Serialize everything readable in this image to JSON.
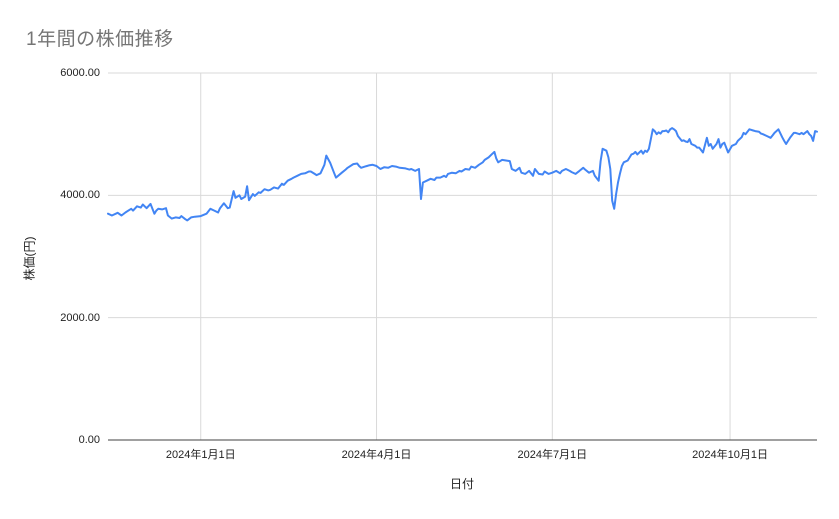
{
  "chart_data": {
    "type": "line",
    "title": "1年間の株価推移",
    "xlabel": "日付",
    "ylabel": "株価(円)",
    "ylim": [
      0,
      6000
    ],
    "grid": true,
    "legend_position": "none",
    "series_name": "株価",
    "series_color": "#4285f4",
    "grid_color": "#d9d9d9",
    "baseline_color": "#424242",
    "title_color": "#757575",
    "tick_color": "#222222",
    "y_ticks": [
      {
        "value": 6000,
        "label": "6000.00"
      },
      {
        "value": 4000,
        "label": "4000.00"
      },
      {
        "value": 2000,
        "label": "2000.00"
      },
      {
        "value": 0,
        "label": "0.00"
      }
    ],
    "x_ticks": [
      {
        "date": "2024-01-01",
        "label": "2024年1月1日"
      },
      {
        "date": "2024-04-01",
        "label": "2024年4月1日"
      },
      {
        "date": "2024-07-01",
        "label": "2024年7月1日"
      },
      {
        "date": "2024-10-01",
        "label": "2024年10月1日"
      }
    ],
    "points": [
      [
        "2023-11-14",
        3700
      ],
      [
        "2023-11-16",
        3670
      ],
      [
        "2023-11-19",
        3715
      ],
      [
        "2023-11-21",
        3670
      ],
      [
        "2023-11-23",
        3720
      ],
      [
        "2023-11-26",
        3780
      ],
      [
        "2023-11-27",
        3750
      ],
      [
        "2023-11-29",
        3820
      ],
      [
        "2023-12-01",
        3800
      ],
      [
        "2023-12-02",
        3850
      ],
      [
        "2023-12-04",
        3790
      ],
      [
        "2023-12-06",
        3860
      ],
      [
        "2023-12-08",
        3700
      ],
      [
        "2023-12-09",
        3750
      ],
      [
        "2023-12-10",
        3780
      ],
      [
        "2023-12-12",
        3770
      ],
      [
        "2023-12-14",
        3790
      ],
      [
        "2023-12-15",
        3670
      ],
      [
        "2023-12-17",
        3620
      ],
      [
        "2023-12-19",
        3640
      ],
      [
        "2023-12-21",
        3630
      ],
      [
        "2023-12-22",
        3660
      ],
      [
        "2023-12-24",
        3610
      ],
      [
        "2023-12-25",
        3590
      ],
      [
        "2023-12-27",
        3640
      ],
      [
        "2023-12-29",
        3650
      ],
      [
        "2024-01-01",
        3660
      ],
      [
        "2024-01-04",
        3700
      ],
      [
        "2024-01-06",
        3780
      ],
      [
        "2024-01-08",
        3750
      ],
      [
        "2024-01-10",
        3720
      ],
      [
        "2024-01-11",
        3790
      ],
      [
        "2024-01-13",
        3870
      ],
      [
        "2024-01-15",
        3790
      ],
      [
        "2024-01-16",
        3800
      ],
      [
        "2024-01-18",
        4070
      ],
      [
        "2024-01-19",
        3960
      ],
      [
        "2024-01-21",
        4000
      ],
      [
        "2024-01-22",
        3940
      ],
      [
        "2024-01-24",
        3980
      ],
      [
        "2024-01-25",
        4150
      ],
      [
        "2024-01-26",
        3920
      ],
      [
        "2024-01-28",
        4020
      ],
      [
        "2024-01-29",
        3990
      ],
      [
        "2024-01-31",
        4050
      ],
      [
        "2024-02-01",
        4040
      ],
      [
        "2024-02-03",
        4100
      ],
      [
        "2024-02-05",
        4080
      ],
      [
        "2024-02-06",
        4090
      ],
      [
        "2024-02-08",
        4130
      ],
      [
        "2024-02-10",
        4110
      ],
      [
        "2024-02-12",
        4190
      ],
      [
        "2024-02-13",
        4170
      ],
      [
        "2024-02-15",
        4240
      ],
      [
        "2024-02-17",
        4270
      ],
      [
        "2024-02-18",
        4290
      ],
      [
        "2024-02-20",
        4320
      ],
      [
        "2024-02-22",
        4350
      ],
      [
        "2024-02-24",
        4360
      ],
      [
        "2024-02-26",
        4390
      ],
      [
        "2024-02-27",
        4390
      ],
      [
        "2024-02-29",
        4350
      ],
      [
        "2024-03-01",
        4330
      ],
      [
        "2024-03-03",
        4360
      ],
      [
        "2024-03-05",
        4500
      ],
      [
        "2024-03-06",
        4650
      ],
      [
        "2024-03-08",
        4530
      ],
      [
        "2024-03-10",
        4370
      ],
      [
        "2024-03-11",
        4290
      ],
      [
        "2024-03-14",
        4370
      ],
      [
        "2024-03-16",
        4420
      ],
      [
        "2024-03-17",
        4450
      ],
      [
        "2024-03-20",
        4510
      ],
      [
        "2024-03-22",
        4520
      ],
      [
        "2024-03-23",
        4480
      ],
      [
        "2024-03-24",
        4450
      ],
      [
        "2024-03-26",
        4470
      ],
      [
        "2024-03-27",
        4480
      ],
      [
        "2024-03-28",
        4490
      ],
      [
        "2024-03-30",
        4500
      ],
      [
        "2024-04-01",
        4480
      ],
      [
        "2024-04-03",
        4430
      ],
      [
        "2024-04-05",
        4460
      ],
      [
        "2024-04-07",
        4450
      ],
      [
        "2024-04-09",
        4480
      ],
      [
        "2024-04-11",
        4470
      ],
      [
        "2024-04-13",
        4450
      ],
      [
        "2024-04-16",
        4440
      ],
      [
        "2024-04-18",
        4420
      ],
      [
        "2024-04-19",
        4430
      ],
      [
        "2024-04-21",
        4400
      ],
      [
        "2024-04-23",
        4430
      ],
      [
        "2024-04-24",
        3940
      ],
      [
        "2024-04-25",
        4210
      ],
      [
        "2024-04-27",
        4240
      ],
      [
        "2024-04-29",
        4270
      ],
      [
        "2024-05-01",
        4250
      ],
      [
        "2024-05-02",
        4290
      ],
      [
        "2024-05-04",
        4290
      ],
      [
        "2024-05-06",
        4320
      ],
      [
        "2024-05-07",
        4300
      ],
      [
        "2024-05-08",
        4350
      ],
      [
        "2024-05-10",
        4370
      ],
      [
        "2024-05-12",
        4360
      ],
      [
        "2024-05-14",
        4400
      ],
      [
        "2024-05-15",
        4390
      ],
      [
        "2024-05-17",
        4430
      ],
      [
        "2024-05-19",
        4420
      ],
      [
        "2024-05-20",
        4470
      ],
      [
        "2024-05-22",
        4450
      ],
      [
        "2024-05-24",
        4500
      ],
      [
        "2024-05-26",
        4540
      ],
      [
        "2024-05-27",
        4580
      ],
      [
        "2024-05-29",
        4620
      ],
      [
        "2024-05-31",
        4680
      ],
      [
        "2024-06-01",
        4710
      ],
      [
        "2024-06-02",
        4600
      ],
      [
        "2024-06-03",
        4540
      ],
      [
        "2024-06-05",
        4580
      ],
      [
        "2024-06-07",
        4570
      ],
      [
        "2024-06-09",
        4560
      ],
      [
        "2024-06-10",
        4430
      ],
      [
        "2024-06-12",
        4400
      ],
      [
        "2024-06-14",
        4450
      ],
      [
        "2024-06-15",
        4370
      ],
      [
        "2024-06-17",
        4350
      ],
      [
        "2024-06-19",
        4400
      ],
      [
        "2024-06-21",
        4320
      ],
      [
        "2024-06-22",
        4430
      ],
      [
        "2024-06-24",
        4350
      ],
      [
        "2024-06-26",
        4340
      ],
      [
        "2024-06-27",
        4390
      ],
      [
        "2024-06-29",
        4350
      ],
      [
        "2024-07-01",
        4370
      ],
      [
        "2024-07-03",
        4400
      ],
      [
        "2024-07-05",
        4360
      ],
      [
        "2024-07-06",
        4400
      ],
      [
        "2024-07-08",
        4430
      ],
      [
        "2024-07-10",
        4400
      ],
      [
        "2024-07-11",
        4380
      ],
      [
        "2024-07-13",
        4350
      ],
      [
        "2024-07-15",
        4400
      ],
      [
        "2024-07-17",
        4450
      ],
      [
        "2024-07-18",
        4420
      ],
      [
        "2024-07-20",
        4370
      ],
      [
        "2024-07-22",
        4400
      ],
      [
        "2024-07-23",
        4320
      ],
      [
        "2024-07-25",
        4240
      ],
      [
        "2024-07-26",
        4560
      ],
      [
        "2024-07-27",
        4760
      ],
      [
        "2024-07-29",
        4730
      ],
      [
        "2024-07-30",
        4620
      ],
      [
        "2024-07-31",
        4430
      ],
      [
        "2024-08-01",
        3910
      ],
      [
        "2024-08-02",
        3780
      ],
      [
        "2024-08-03",
        4020
      ],
      [
        "2024-08-04",
        4210
      ],
      [
        "2024-08-05",
        4350
      ],
      [
        "2024-08-06",
        4480
      ],
      [
        "2024-08-07",
        4540
      ],
      [
        "2024-08-09",
        4570
      ],
      [
        "2024-08-11",
        4670
      ],
      [
        "2024-08-12",
        4680
      ],
      [
        "2024-08-13",
        4710
      ],
      [
        "2024-08-14",
        4670
      ],
      [
        "2024-08-15",
        4700
      ],
      [
        "2024-08-16",
        4730
      ],
      [
        "2024-08-17",
        4680
      ],
      [
        "2024-08-18",
        4730
      ],
      [
        "2024-08-19",
        4710
      ],
      [
        "2024-08-20",
        4760
      ],
      [
        "2024-08-22",
        5080
      ],
      [
        "2024-08-23",
        5050
      ],
      [
        "2024-08-24",
        5000
      ],
      [
        "2024-08-25",
        5030
      ],
      [
        "2024-08-26",
        5010
      ],
      [
        "2024-08-27",
        5050
      ],
      [
        "2024-08-28",
        5050
      ],
      [
        "2024-08-29",
        5060
      ],
      [
        "2024-08-30",
        5030
      ],
      [
        "2024-08-31",
        5080
      ],
      [
        "2024-09-01",
        5100
      ],
      [
        "2024-09-02",
        5080
      ],
      [
        "2024-09-03",
        5050
      ],
      [
        "2024-09-04",
        4970
      ],
      [
        "2024-09-06",
        4890
      ],
      [
        "2024-09-07",
        4900
      ],
      [
        "2024-09-08",
        4880
      ],
      [
        "2024-09-09",
        4870
      ],
      [
        "2024-09-10",
        4920
      ],
      [
        "2024-09-11",
        4840
      ],
      [
        "2024-09-13",
        4810
      ],
      [
        "2024-09-14",
        4780
      ],
      [
        "2024-09-15",
        4780
      ],
      [
        "2024-09-17",
        4700
      ],
      [
        "2024-09-19",
        4940
      ],
      [
        "2024-09-20",
        4810
      ],
      [
        "2024-09-21",
        4840
      ],
      [
        "2024-09-22",
        4760
      ],
      [
        "2024-09-24",
        4840
      ],
      [
        "2024-09-25",
        4920
      ],
      [
        "2024-09-26",
        4780
      ],
      [
        "2024-09-27",
        4840
      ],
      [
        "2024-09-28",
        4860
      ],
      [
        "2024-09-30",
        4700
      ],
      [
        "2024-10-02",
        4810
      ],
      [
        "2024-10-04",
        4840
      ],
      [
        "2024-10-05",
        4890
      ],
      [
        "2024-10-07",
        4950
      ],
      [
        "2024-10-08",
        5020
      ],
      [
        "2024-10-09",
        5000
      ],
      [
        "2024-10-11",
        5080
      ],
      [
        "2024-10-13",
        5060
      ],
      [
        "2024-10-14",
        5050
      ],
      [
        "2024-10-16",
        5040
      ],
      [
        "2024-10-17",
        5010
      ],
      [
        "2024-10-18",
        5000
      ],
      [
        "2024-10-20",
        4970
      ],
      [
        "2024-10-22",
        4940
      ],
      [
        "2024-10-23",
        4980
      ],
      [
        "2024-10-24",
        5020
      ],
      [
        "2024-10-26",
        5080
      ],
      [
        "2024-10-28",
        4950
      ],
      [
        "2024-10-29",
        4890
      ],
      [
        "2024-10-30",
        4840
      ],
      [
        "2024-10-31",
        4890
      ],
      [
        "2024-11-01",
        4940
      ],
      [
        "2024-11-03",
        5020
      ],
      [
        "2024-11-04",
        5020
      ],
      [
        "2024-11-06",
        5000
      ],
      [
        "2024-11-07",
        5020
      ],
      [
        "2024-11-08",
        5000
      ],
      [
        "2024-11-10",
        5050
      ],
      [
        "2024-11-11",
        5000
      ],
      [
        "2024-11-12",
        4970
      ],
      [
        "2024-11-13",
        4890
      ],
      [
        "2024-11-14",
        5050
      ],
      [
        "2024-11-15",
        5040
      ]
    ]
  }
}
